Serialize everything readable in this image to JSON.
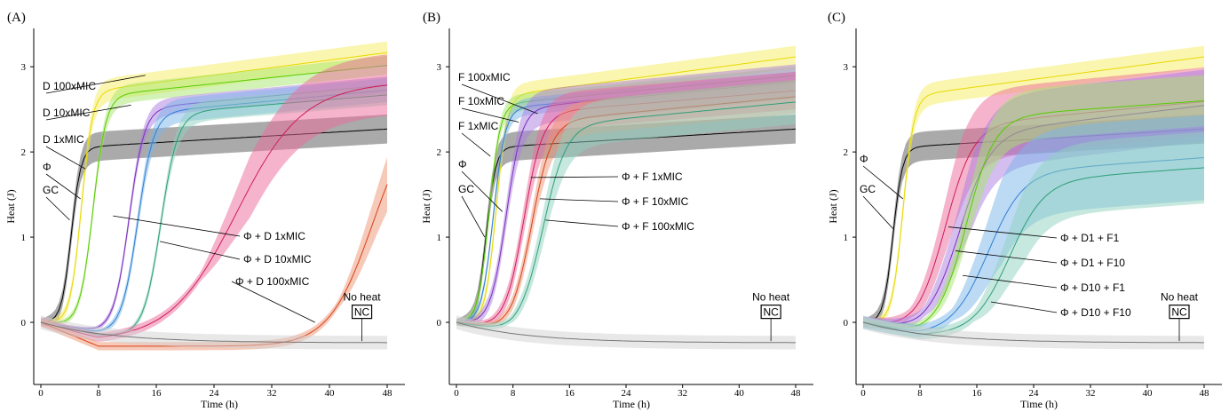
{
  "chart_data": [
    {
      "panel_label": "(A)",
      "type": "line",
      "xlabel": "Time (h)",
      "ylabel": "Heat (J)",
      "xlim": [
        0,
        48
      ],
      "ylim": [
        -0.5,
        3.45
      ],
      "xticks": [
        0,
        8,
        16,
        24,
        32,
        40,
        48
      ],
      "yticks": [
        0,
        1,
        2,
        3
      ],
      "grid": false,
      "series": [
        {
          "label": "GC",
          "color": "#000000",
          "band_color": "#555555",
          "t_mid": 4.2,
          "k": 1.5,
          "plateau": 2.05,
          "slope": 0.005,
          "band": 0.17,
          "dip": 0.02
        },
        {
          "label": "Φ",
          "color": "#e8d800",
          "band_color": "#f5ee60",
          "t_mid": 5.6,
          "k": 1.3,
          "plateau": 2.7,
          "slope": 0.011,
          "band": 0.13,
          "dip": 0.03
        },
        {
          "label": "D 1xMIC",
          "color": "#55cc00",
          "band_color": "#a8e66b",
          "t_mid": 7.2,
          "k": 1.1,
          "plateau": 2.65,
          "slope": 0.009,
          "band": 0.11,
          "dip": 0.05
        },
        {
          "label": "D 10xMIC",
          "color": "#7b2fbe",
          "band_color": "#a97be0",
          "t_mid": 12.2,
          "k": 0.95,
          "plateau": 2.5,
          "slope": 0.008,
          "band": 0.1,
          "dip": 0.1
        },
        {
          "label": "D 100xMIC",
          "color": "#2f7fd4",
          "band_color": "#7ab6ea",
          "t_mid": 13.4,
          "k": 0.9,
          "plateau": 2.45,
          "slope": 0.008,
          "band": 0.14,
          "dip": 0.12
        },
        {
          "label": "Φ + D 1xMIC",
          "color": "#2e9e7a",
          "band_color": "#8fd1bd",
          "t_mid": 16.6,
          "k": 0.85,
          "plateau": 2.45,
          "slope": 0.007,
          "band": 0.12,
          "dip": 0.15
        },
        {
          "label": "Φ + D 10xMIC",
          "color": "#d21c5a",
          "band_color": "#ec6a99",
          "t_mid": 27.0,
          "k": 0.22,
          "plateau": 2.75,
          "slope": 0.003,
          "band": 0.36,
          "dip": 0.22
        },
        {
          "label": "Φ + D 100xMIC",
          "color": "#d9411a",
          "band_color": "#ee9472",
          "t_mid": 46.0,
          "k": 0.33,
          "plateau": 2.6,
          "slope": 0.0,
          "band": 0.32,
          "dip": 0.28
        },
        {
          "label": "NC",
          "color": "#777777",
          "band_color": "#d2d2d2",
          "t_mid": 999,
          "k": 1,
          "plateau": 0,
          "slope": 0,
          "band": 0.08,
          "dip": 0.24
        }
      ],
      "annotations": [
        "D 100xMIC",
        "D 10xMIC",
        "D 1xMIC",
        "Φ",
        "GC",
        "Φ + D 1xMIC",
        "Φ + D 10xMIC",
        "Φ + D 100xMIC",
        "No heat",
        "NC"
      ]
    },
    {
      "panel_label": "(B)",
      "type": "line",
      "xlabel": "Time (h)",
      "ylabel": "Heat (J)",
      "xlim": [
        0,
        48
      ],
      "ylim": [
        -0.5,
        3.45
      ],
      "xticks": [
        0,
        8,
        16,
        24,
        32,
        40,
        48
      ],
      "yticks": [
        0,
        1,
        2,
        3
      ],
      "grid": false,
      "series": [
        {
          "label": "GC",
          "color": "#000000",
          "band_color": "#555555",
          "t_mid": 4.2,
          "k": 1.5,
          "plateau": 2.05,
          "slope": 0.005,
          "band": 0.17,
          "dip": 0.02
        },
        {
          "label": "Φ",
          "color": "#e8d800",
          "band_color": "#f5ee60",
          "t_mid": 5.6,
          "k": 1.3,
          "plateau": 2.65,
          "slope": 0.011,
          "band": 0.13,
          "dip": 0.03
        },
        {
          "label": "F 1xMIC",
          "color": "#55cc00",
          "band_color": "#a8e66b",
          "t_mid": 4.6,
          "k": 1.3,
          "plateau": 2.55,
          "slope": 0.008,
          "band": 0.1,
          "dip": 0.03
        },
        {
          "label": "F 10xMIC",
          "color": "#2f7fd4",
          "band_color": "#7ab6ea",
          "t_mid": 5.2,
          "k": 1.2,
          "plateau": 2.5,
          "slope": 0.008,
          "band": 0.1,
          "dip": 0.04
        },
        {
          "label": "F 100xMIC",
          "color": "#7b2fbe",
          "band_color": "#a97be0",
          "t_mid": 7.0,
          "k": 0.9,
          "plateau": 2.5,
          "slope": 0.008,
          "band": 0.2,
          "dip": 0.05
        },
        {
          "label": "Φ + F 1xMIC",
          "color": "#d21c5a",
          "band_color": "#ec6a99",
          "t_mid": 9.5,
          "k": 0.75,
          "plateau": 2.45,
          "slope": 0.007,
          "band": 0.22,
          "dip": 0.08
        },
        {
          "label": "Φ + F 10xMIC",
          "color": "#d9411a",
          "band_color": "#ee9472",
          "t_mid": 10.6,
          "k": 0.7,
          "plateau": 2.35,
          "slope": 0.008,
          "band": 0.2,
          "dip": 0.1
        },
        {
          "label": "Φ + F 100xMIC",
          "color": "#2e9e7a",
          "band_color": "#8fd1bd",
          "t_mid": 12.2,
          "k": 0.6,
          "plateau": 2.3,
          "slope": 0.008,
          "band": 0.26,
          "dip": 0.12
        },
        {
          "label": "NC",
          "color": "#777777",
          "band_color": "#d2d2d2",
          "t_mid": 999,
          "k": 1,
          "plateau": 0,
          "slope": 0,
          "band": 0.08,
          "dip": 0.24
        }
      ],
      "annotations": [
        "F 100xMIC",
        "F 10xMIC",
        "F 1xMIC",
        "Φ",
        "GC",
        "Φ + F 1xMIC",
        "Φ + F 10xMIC",
        "Φ + F 100xMIC",
        "No heat",
        "NC"
      ]
    },
    {
      "panel_label": "(C)",
      "type": "line",
      "xlabel": "Time (h)",
      "ylabel": "Heat (J)",
      "xlim": [
        0,
        48
      ],
      "ylim": [
        -0.5,
        3.45
      ],
      "xticks": [
        0,
        8,
        16,
        24,
        32,
        40,
        48
      ],
      "yticks": [
        0,
        1,
        2,
        3
      ],
      "grid": false,
      "series": [
        {
          "label": "GC",
          "color": "#000000",
          "band_color": "#555555",
          "t_mid": 4.2,
          "k": 1.5,
          "plateau": 2.05,
          "slope": 0.005,
          "band": 0.17,
          "dip": 0.02
        },
        {
          "label": "Φ",
          "color": "#e8d800",
          "band_color": "#f5ee60",
          "t_mid": 5.6,
          "k": 1.3,
          "plateau": 2.65,
          "slope": 0.011,
          "band": 0.13,
          "dip": 0.03
        },
        {
          "label": "Φ + D1 + F1",
          "color": "#d21c5a",
          "band_color": "#ec6a99",
          "t_mid": 11.5,
          "k": 0.5,
          "plateau": 2.3,
          "slope": 0.008,
          "band": 0.4,
          "dip": 0.1
        },
        {
          "label": "Φ + D1 + F10",
          "color": "#7b2fbe",
          "band_color": "#a97be0",
          "t_mid": 13.5,
          "k": 0.45,
          "plateau": 2.2,
          "slope": 0.01,
          "band": 0.42,
          "dip": 0.1
        },
        {
          "label": "Φ + D10 + F1",
          "color": "#55cc00",
          "band_color": "#a8e66b",
          "t_mid": 14.5,
          "k": 0.5,
          "plateau": 2.4,
          "slope": 0.006,
          "band": 0.3,
          "dip": 0.12
        },
        {
          "label": "Φ + D10 + F10",
          "color": "#2f7fd4",
          "band_color": "#7ab6ea",
          "t_mid": 17.5,
          "k": 0.4,
          "plateau": 1.75,
          "slope": 0.006,
          "band": 0.5,
          "dip": 0.14
        },
        {
          "label": "",
          "color": "#2e9e7a",
          "band_color": "#8fd1bd",
          "t_mid": 20.5,
          "k": 0.4,
          "plateau": 1.65,
          "slope": 0.006,
          "band": 0.42,
          "dip": 0.15
        },
        {
          "label": "NC",
          "color": "#777777",
          "band_color": "#d2d2d2",
          "t_mid": 999,
          "k": 1,
          "plateau": 0,
          "slope": 0,
          "band": 0.08,
          "dip": 0.24
        }
      ],
      "annotations": [
        "Φ",
        "GC",
        "Φ + D1 + F1",
        "Φ + D1 + F10",
        "Φ + D10 + F1",
        "Φ + D10 + F10",
        "No heat",
        "NC"
      ]
    }
  ]
}
